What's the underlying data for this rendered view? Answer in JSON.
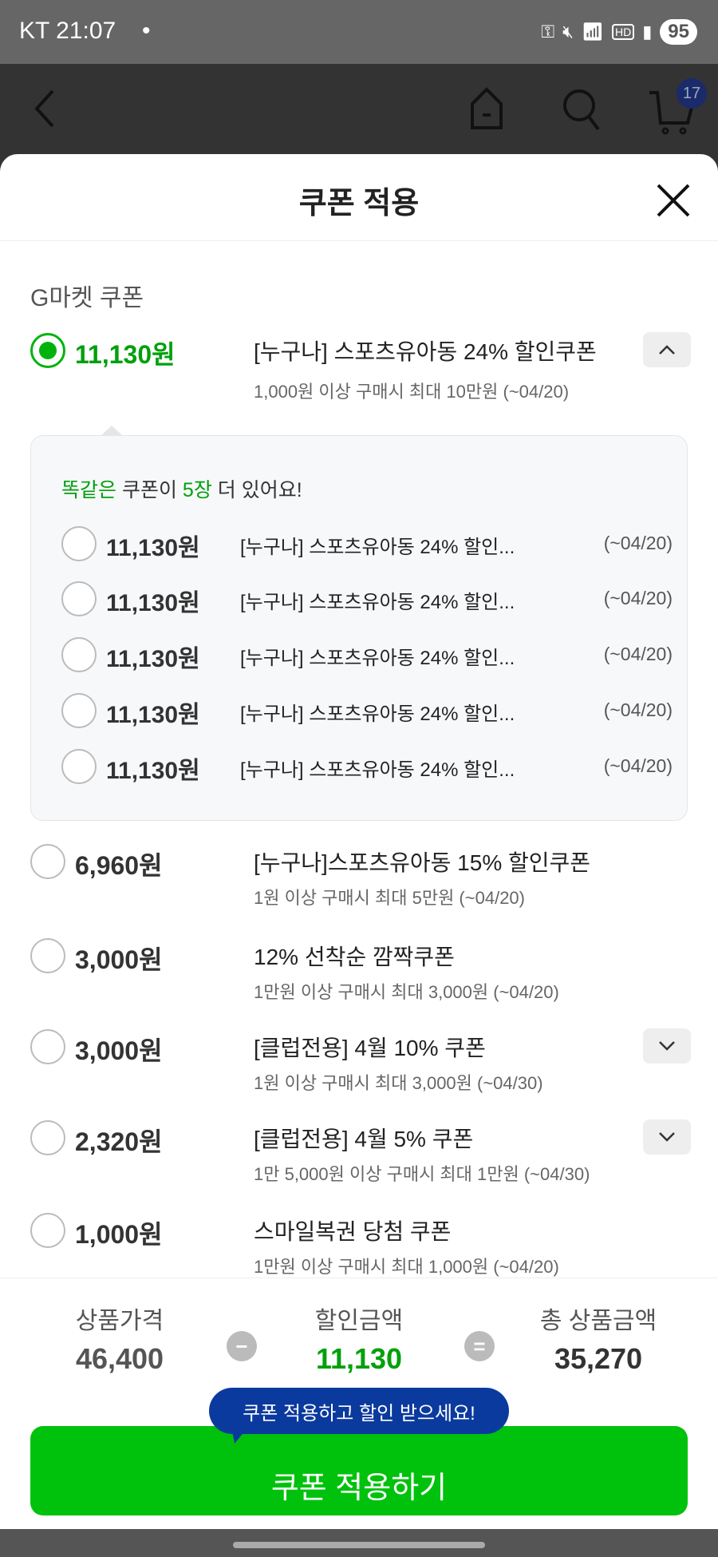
{
  "status": {
    "carrier_time": "KT 21:07",
    "dot": "•",
    "battery": "95"
  },
  "nav": {
    "cart_count": "17"
  },
  "sheet": {
    "title": "쿠폰 적용",
    "section": "G마켓 쿠폰"
  },
  "selected": {
    "amount": "11,130원",
    "name": "[누구나] 스포츠유아동 24% 할인쿠폰",
    "sub": "1,000원 이상 구매시 최대 10만원 (~04/20)"
  },
  "duplicates": {
    "msg_a": "똑같은",
    "msg_b": " 쿠폰이 ",
    "msg_c": "5장",
    "msg_d": " 더 있어요!",
    "items": [
      {
        "amount": "11,130원",
        "name": "[누구나] 스포츠유아동 24% 할인...",
        "date": "(~04/20)"
      },
      {
        "amount": "11,130원",
        "name": "[누구나] 스포츠유아동 24% 할인...",
        "date": "(~04/20)"
      },
      {
        "amount": "11,130원",
        "name": "[누구나] 스포츠유아동 24% 할인...",
        "date": "(~04/20)"
      },
      {
        "amount": "11,130원",
        "name": "[누구나] 스포츠유아동 24% 할인...",
        "date": "(~04/20)"
      },
      {
        "amount": "11,130원",
        "name": "[누구나] 스포츠유아동 24% 할인...",
        "date": "(~04/20)"
      }
    ]
  },
  "coupons": [
    {
      "amount": "6,960원",
      "name": "[누구나]스포츠유아동 15% 할인쿠폰",
      "sub": "1원 이상 구매시 최대 5만원 (~04/20)"
    },
    {
      "amount": "3,000원",
      "name": "12% 선착순 깜짝쿠폰",
      "sub": "1만원 이상 구매시 최대 3,000원 (~04/20)"
    },
    {
      "amount": "3,000원",
      "name": "[클럽전용] 4월 10% 쿠폰",
      "sub": "1원 이상 구매시 최대 3,000원 (~04/30)"
    },
    {
      "amount": "2,320원",
      "name": "[클럽전용] 4월 5% 쿠폰",
      "sub": "1만 5,000원 이상 구매시 최대 1만원 (~04/30)"
    },
    {
      "amount": "1,000원",
      "name": "스마일복권 당첨 쿠폰",
      "sub": "1만원 이상 구매시 최대 1,000원 (~04/20)"
    }
  ],
  "footer": {
    "price_label": "상품가격",
    "price": "46,400",
    "minus": "−",
    "discount_label": "할인금액",
    "discount": "11,130",
    "equals": "=",
    "total_label": "총 상품금액",
    "total": "35,270",
    "tooltip": "쿠폰 적용하고 할인 받으세요!",
    "apply": "쿠폰 적용하기"
  },
  "colors": {
    "accent": "#00c20c",
    "tooltip": "#0b3a9e"
  }
}
